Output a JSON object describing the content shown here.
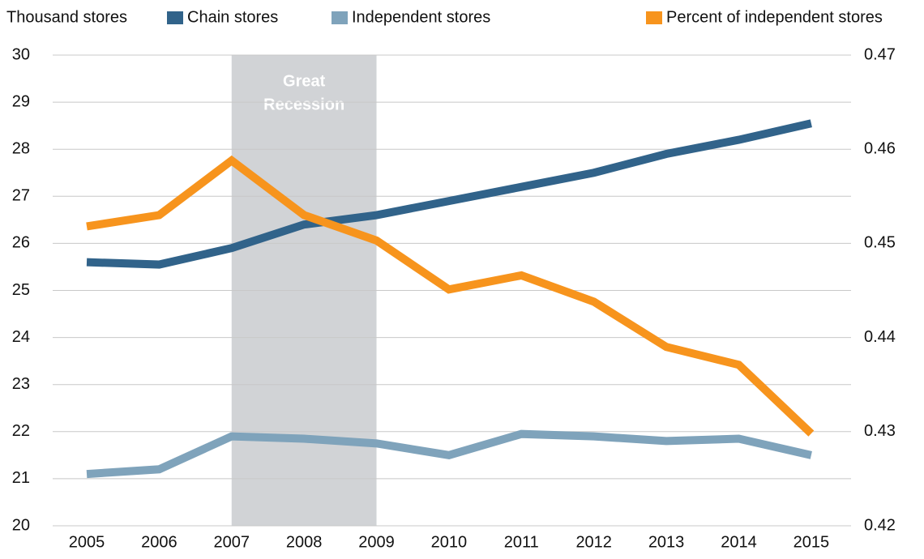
{
  "chart_data": {
    "type": "line",
    "y_label": "Thousand stores",
    "x": [
      2005,
      2006,
      2007,
      2008,
      2009,
      2010,
      2011,
      2012,
      2013,
      2014,
      2015
    ],
    "series": [
      {
        "name": "Chain stores",
        "color": "#31638a",
        "values": [
          25.6,
          25.55,
          25.9,
          26.4,
          26.6,
          26.9,
          27.2,
          27.5,
          27.9,
          28.2,
          28.55
        ]
      },
      {
        "name": "Independent stores",
        "color": "#7fa3bb",
        "values": [
          21.1,
          21.2,
          21.9,
          21.85,
          21.75,
          21.5,
          21.95,
          21.9,
          21.8,
          21.85,
          21.5
        ]
      },
      {
        "name": "Percent of independent stores",
        "color": "#f7941d",
        "axis": "y2",
        "values": [
          0.4518,
          0.453,
          0.4588,
          0.453,
          0.4503,
          0.4451,
          0.4466,
          0.4438,
          0.439,
          0.4371,
          0.4298
        ]
      }
    ],
    "xlim": [
      2004.53,
      2015.55
    ],
    "ylim": [
      20,
      30
    ],
    "yticks": [
      20,
      21,
      22,
      23,
      24,
      25,
      26,
      27,
      28,
      29,
      30
    ],
    "y2lim": [
      0.42,
      0.47
    ],
    "y2ticks": [
      0.42,
      0.43,
      0.44,
      0.45,
      0.46,
      0.47
    ],
    "grid": true,
    "shaded_span": {
      "x": [
        2007,
        2009
      ],
      "color": "#d1d3d6",
      "label": [
        "Great",
        "Recession"
      ]
    }
  }
}
